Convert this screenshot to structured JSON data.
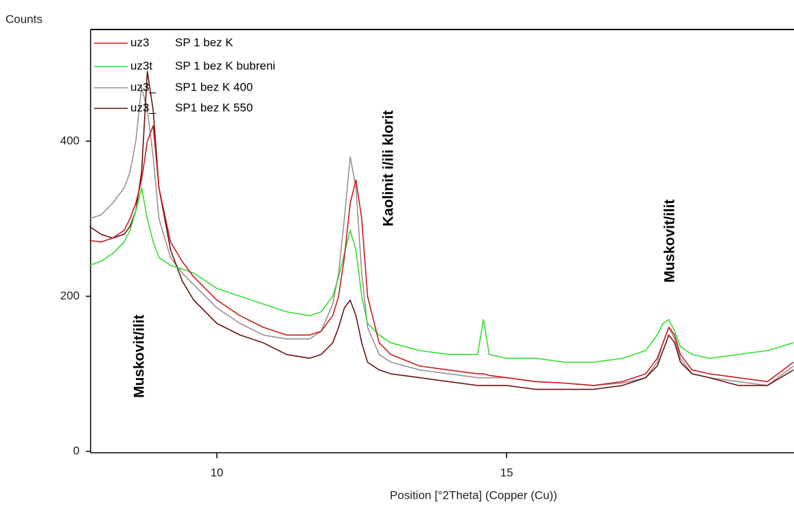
{
  "chart_data": {
    "type": "line",
    "y_axis_label": "Counts",
    "x_axis_label": "Position [°2Theta] (Copper (Cu))",
    "annotations": [
      "Muskovit/ilit",
      "Kaolinit  i/ili  klorit",
      "Muskovit/ilit"
    ],
    "xlim": [
      7.82,
      19.96
    ],
    "ylim": [
      0,
      544
    ],
    "xticks": [
      10,
      15
    ],
    "yticks": [
      0,
      200,
      400
    ],
    "x": [
      7.8,
      8.0,
      8.2,
      8.4,
      8.5,
      8.6,
      8.7,
      8.8,
      8.9,
      9.0,
      9.2,
      9.4,
      9.6,
      9.8,
      10.0,
      10.4,
      10.8,
      11.2,
      11.6,
      11.8,
      12.0,
      12.1,
      12.2,
      12.3,
      12.4,
      12.5,
      12.6,
      12.8,
      13.0,
      13.5,
      14.0,
      14.5,
      14.6,
      14.7,
      15.0,
      15.5,
      16.0,
      16.5,
      17.0,
      17.4,
      17.6,
      17.7,
      17.8,
      17.9,
      18.0,
      18.2,
      18.5,
      19.0,
      19.5,
      19.95
    ],
    "series": [
      {
        "file": "uz3",
        "name": "SP 1 bez K",
        "color": "#cc1a1a",
        "values": [
          272,
          270,
          275,
          285,
          300,
          320,
          350,
          400,
          420,
          340,
          270,
          245,
          225,
          210,
          195,
          175,
          160,
          150,
          150,
          155,
          175,
          200,
          250,
          320,
          350,
          300,
          200,
          140,
          125,
          110,
          105,
          100,
          100,
          98,
          95,
          90,
          88,
          85,
          90,
          100,
          120,
          140,
          160,
          150,
          125,
          105,
          100,
          95,
          90,
          115
        ]
      },
      {
        "file": "uz3t",
        "name": "SP 1 bez K bubreni",
        "color": "#33dd33",
        "values": [
          240,
          245,
          255,
          270,
          285,
          310,
          340,
          300,
          270,
          250,
          240,
          235,
          230,
          220,
          210,
          200,
          190,
          180,
          175,
          180,
          200,
          225,
          255,
          285,
          260,
          200,
          165,
          150,
          140,
          130,
          125,
          125,
          170,
          125,
          120,
          120,
          115,
          115,
          120,
          130,
          150,
          165,
          170,
          155,
          135,
          125,
          120,
          125,
          130,
          140
        ]
      },
      {
        "file": "uz3_",
        "name": "SP1 bez K  400",
        "color": "#9a8f94",
        "values": [
          300,
          305,
          320,
          340,
          360,
          400,
          470,
          440,
          380,
          300,
          250,
          230,
          215,
          200,
          185,
          165,
          150,
          145,
          145,
          155,
          190,
          230,
          300,
          380,
          340,
          230,
          160,
          125,
          115,
          105,
          100,
          95,
          95,
          95,
          95,
          90,
          88,
          85,
          88,
          95,
          115,
          140,
          160,
          145,
          120,
          100,
          95,
          90,
          85,
          110
        ]
      },
      {
        "file": "uz3_",
        "name": "SP1 bez K 550",
        "color": "#6b1010",
        "values": [
          290,
          280,
          275,
          280,
          290,
          310,
          360,
          490,
          440,
          340,
          260,
          220,
          195,
          180,
          165,
          150,
          140,
          125,
          120,
          125,
          140,
          160,
          185,
          195,
          175,
          140,
          115,
          105,
          100,
          95,
          90,
          85,
          85,
          85,
          85,
          80,
          80,
          80,
          85,
          95,
          110,
          130,
          150,
          140,
          115,
          100,
          95,
          85,
          85,
          105
        ]
      }
    ]
  }
}
